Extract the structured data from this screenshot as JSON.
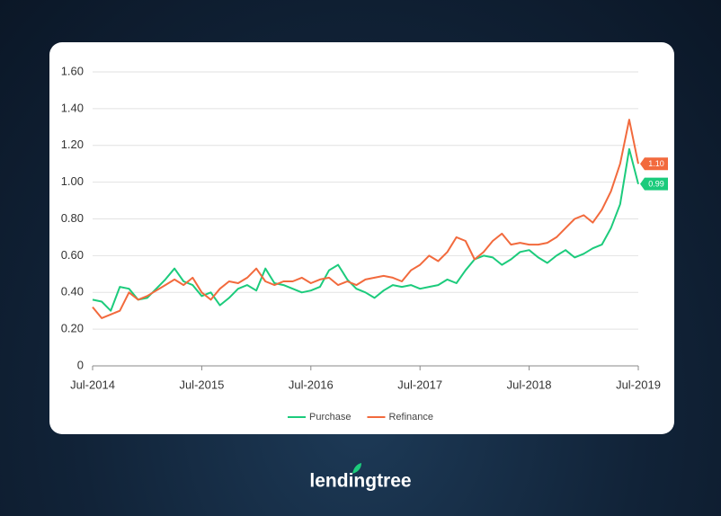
{
  "chart_data": {
    "type": "line",
    "categories": [
      "Jul-2014",
      null,
      null,
      null,
      null,
      null,
      null,
      null,
      null,
      null,
      null,
      null,
      "Jul-2015",
      null,
      null,
      null,
      null,
      null,
      null,
      null,
      null,
      null,
      null,
      null,
      "Jul-2016",
      null,
      null,
      null,
      null,
      null,
      null,
      null,
      null,
      null,
      null,
      null,
      "Jul-2017",
      null,
      null,
      null,
      null,
      null,
      null,
      null,
      null,
      null,
      null,
      null,
      "Jul-2018",
      null,
      null,
      null,
      null,
      null,
      null,
      null,
      null,
      null,
      null,
      null,
      "Jul-2019"
    ],
    "series": [
      {
        "name": "Purchase",
        "color": "#1ccb7c",
        "values": [
          0.36,
          0.35,
          0.3,
          0.43,
          0.42,
          0.36,
          0.37,
          0.42,
          0.47,
          0.53,
          0.46,
          0.44,
          0.38,
          0.4,
          0.33,
          0.37,
          0.42,
          0.44,
          0.41,
          0.53,
          0.45,
          0.44,
          0.42,
          0.4,
          0.41,
          0.43,
          0.52,
          0.55,
          0.47,
          0.42,
          0.4,
          0.37,
          0.41,
          0.44,
          0.43,
          0.44,
          0.42,
          0.43,
          0.44,
          0.47,
          0.45,
          0.52,
          0.58,
          0.6,
          0.59,
          0.55,
          0.58,
          0.62,
          0.63,
          0.59,
          0.56,
          0.6,
          0.63,
          0.59,
          0.61,
          0.64,
          0.66,
          0.75,
          0.88,
          1.18,
          0.99
        ],
        "value_labels": [
          null,
          null,
          null,
          null,
          null,
          null,
          null,
          null,
          null,
          null,
          null,
          null,
          null,
          null,
          null,
          null,
          null,
          null,
          null,
          null,
          null,
          null,
          null,
          null,
          null,
          null,
          null,
          null,
          null,
          null,
          null,
          null,
          null,
          null,
          null,
          null,
          null,
          null,
          null,
          null,
          null,
          null,
          null,
          null,
          null,
          null,
          null,
          null,
          null,
          null,
          null,
          null,
          null,
          null,
          null,
          null,
          null,
          null,
          null,
          null,
          "0.99"
        ]
      },
      {
        "name": "Refinance",
        "color": "#f26a3d",
        "values": [
          0.32,
          0.26,
          0.28,
          0.3,
          0.4,
          0.36,
          0.38,
          0.41,
          0.44,
          0.47,
          0.44,
          0.48,
          0.4,
          0.36,
          0.42,
          0.46,
          0.45,
          0.48,
          0.53,
          0.46,
          0.44,
          0.46,
          0.46,
          0.48,
          0.45,
          0.47,
          0.48,
          0.44,
          0.46,
          0.44,
          0.47,
          0.48,
          0.49,
          0.48,
          0.46,
          0.52,
          0.55,
          0.6,
          0.57,
          0.62,
          0.7,
          0.68,
          0.58,
          0.62,
          0.68,
          0.72,
          0.66,
          0.67,
          0.66,
          0.66,
          0.67,
          0.7,
          0.75,
          0.8,
          0.82,
          0.78,
          0.85,
          0.95,
          1.1,
          1.34,
          1.1
        ],
        "value_labels": [
          null,
          null,
          null,
          null,
          null,
          null,
          null,
          null,
          null,
          null,
          null,
          null,
          null,
          null,
          null,
          null,
          null,
          null,
          null,
          null,
          null,
          null,
          null,
          null,
          null,
          null,
          null,
          null,
          null,
          null,
          null,
          null,
          null,
          null,
          null,
          null,
          null,
          null,
          null,
          null,
          null,
          null,
          null,
          null,
          null,
          null,
          null,
          null,
          null,
          null,
          null,
          null,
          null,
          null,
          null,
          null,
          null,
          null,
          null,
          null,
          "1.10"
        ]
      }
    ],
    "ylim": [
      0,
      1.6
    ],
    "yticks": [
      0,
      {
        "value": 0.2,
        "label": "0.20"
      },
      {
        "value": 0.4,
        "label": "0.40"
      },
      {
        "value": 0.6,
        "label": "0.60"
      },
      {
        "value": 0.8,
        "label": "0.80"
      },
      {
        "value": 1.0,
        "label": "1.00"
      },
      {
        "value": 1.2,
        "label": "1.20"
      },
      {
        "value": 1.4,
        "label": "1.40"
      },
      {
        "value": 1.6,
        "label": "1.60"
      }
    ],
    "grid": true,
    "legend": "bottom"
  },
  "logo_text": "lendingtree"
}
